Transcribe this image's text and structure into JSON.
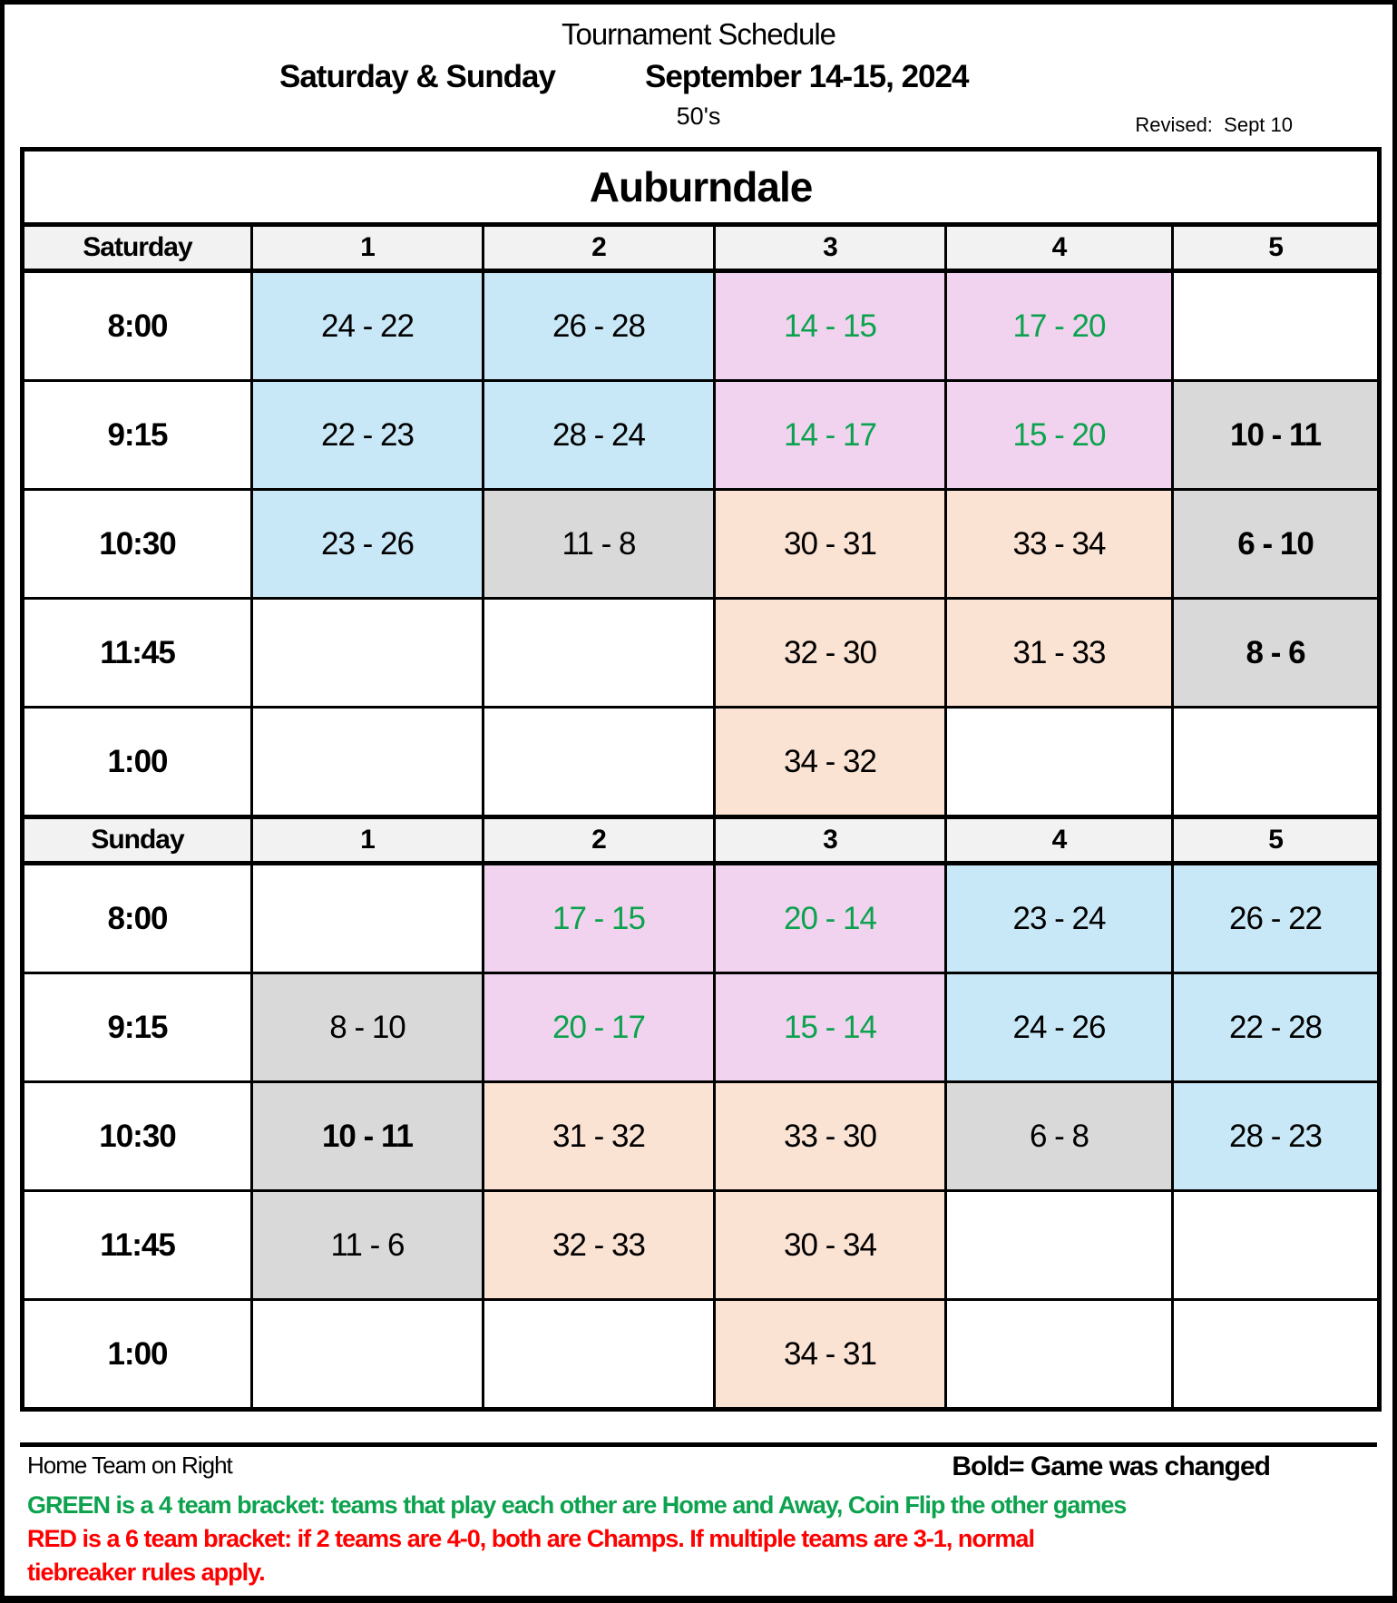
{
  "page": {
    "title": "Tournament Schedule",
    "subtitle_left": "Saturday & Sunday",
    "subtitle_right": "September 14-15, 2024",
    "division": "50's",
    "revised_label": "Revised:",
    "revised_date": "Sept 10",
    "venue": "Auburndale"
  },
  "colors": {
    "blue": "#C9E8F7",
    "pink": "#F2D3EF",
    "peach": "#FBE3D4",
    "gray": "#D9D9D9",
    "header_gray": "#F2F2F2",
    "green_text": "#0CA24E",
    "red_text": "#FF0000"
  },
  "columns": [
    "1",
    "2",
    "3",
    "4",
    "5"
  ],
  "days": [
    {
      "label": "Saturday",
      "rows": [
        {
          "time": "8:00",
          "cells": [
            {
              "text": "24 - 22",
              "bg": "blue"
            },
            {
              "text": "26 - 28",
              "bg": "blue"
            },
            {
              "text": "14 - 15",
              "bg": "pink",
              "fg": "green"
            },
            {
              "text": "17 - 20",
              "bg": "pink",
              "fg": "green"
            },
            {
              "text": "",
              "bg": "white"
            }
          ]
        },
        {
          "time": "9:15",
          "cells": [
            {
              "text": "22 - 23",
              "bg": "blue"
            },
            {
              "text": "28 - 24",
              "bg": "blue"
            },
            {
              "text": "14 - 17",
              "bg": "pink",
              "fg": "green"
            },
            {
              "text": "15 - 20",
              "bg": "pink",
              "fg": "green"
            },
            {
              "text": "10 - 11",
              "bg": "gray",
              "bold": true
            }
          ]
        },
        {
          "time": "10:30",
          "cells": [
            {
              "text": "23 - 26",
              "bg": "blue"
            },
            {
              "text": "11 - 8",
              "bg": "gray"
            },
            {
              "text": "30 - 31",
              "bg": "peach"
            },
            {
              "text": "33 - 34",
              "bg": "peach"
            },
            {
              "text": "6 - 10",
              "bg": "gray",
              "bold": true
            }
          ]
        },
        {
          "time": "11:45",
          "cells": [
            {
              "text": "",
              "bg": "white"
            },
            {
              "text": "",
              "bg": "white"
            },
            {
              "text": "32 - 30",
              "bg": "peach"
            },
            {
              "text": "31 - 33",
              "bg": "peach"
            },
            {
              "text": "8 - 6",
              "bg": "gray",
              "bold": true
            }
          ]
        },
        {
          "time": "1:00",
          "cells": [
            {
              "text": "",
              "bg": "white"
            },
            {
              "text": "",
              "bg": "white"
            },
            {
              "text": "34 - 32",
              "bg": "peach"
            },
            {
              "text": "",
              "bg": "white"
            },
            {
              "text": "",
              "bg": "white"
            }
          ]
        }
      ]
    },
    {
      "label": "Sunday",
      "rows": [
        {
          "time": "8:00",
          "cells": [
            {
              "text": "",
              "bg": "white"
            },
            {
              "text": "17 - 15",
              "bg": "pink",
              "fg": "green"
            },
            {
              "text": "20 - 14",
              "bg": "pink",
              "fg": "green"
            },
            {
              "text": "23 - 24",
              "bg": "blue"
            },
            {
              "text": "26 - 22",
              "bg": "blue"
            }
          ]
        },
        {
          "time": "9:15",
          "cells": [
            {
              "text": "8 - 10",
              "bg": "gray"
            },
            {
              "text": "20 - 17",
              "bg": "pink",
              "fg": "green"
            },
            {
              "text": "15 - 14",
              "bg": "pink",
              "fg": "green"
            },
            {
              "text": "24 - 26",
              "bg": "blue"
            },
            {
              "text": "22 - 28",
              "bg": "blue"
            }
          ]
        },
        {
          "time": "10:30",
          "cells": [
            {
              "text": "10 - 11",
              "bg": "gray",
              "bold": true
            },
            {
              "text": "31 - 32",
              "bg": "peach"
            },
            {
              "text": "33 - 30",
              "bg": "peach"
            },
            {
              "text": "6 - 8",
              "bg": "gray"
            },
            {
              "text": "28 - 23",
              "bg": "blue"
            }
          ]
        },
        {
          "time": "11:45",
          "cells": [
            {
              "text": "11 - 6",
              "bg": "gray"
            },
            {
              "text": "32 - 33",
              "bg": "peach"
            },
            {
              "text": "30 - 34",
              "bg": "peach"
            },
            {
              "text": "",
              "bg": "white"
            },
            {
              "text": "",
              "bg": "white"
            }
          ]
        },
        {
          "time": "1:00",
          "cells": [
            {
              "text": "",
              "bg": "white"
            },
            {
              "text": "",
              "bg": "white"
            },
            {
              "text": "34 - 31",
              "bg": "peach"
            },
            {
              "text": "",
              "bg": "white"
            },
            {
              "text": "",
              "bg": "white"
            }
          ]
        }
      ]
    }
  ],
  "footer": {
    "home_team_note": "Home Team on Right",
    "bold_note": "Bold= Game was changed",
    "green_note": "GREEN is a 4 team bracket: teams that play each other are Home and Away, Coin Flip the other games",
    "red_note_line1": "RED is a 6 team bracket: if 2 teams are 4-0, both are Champs. If multiple teams are 3-1, normal",
    "red_note_line2": "tiebreaker rules apply."
  }
}
